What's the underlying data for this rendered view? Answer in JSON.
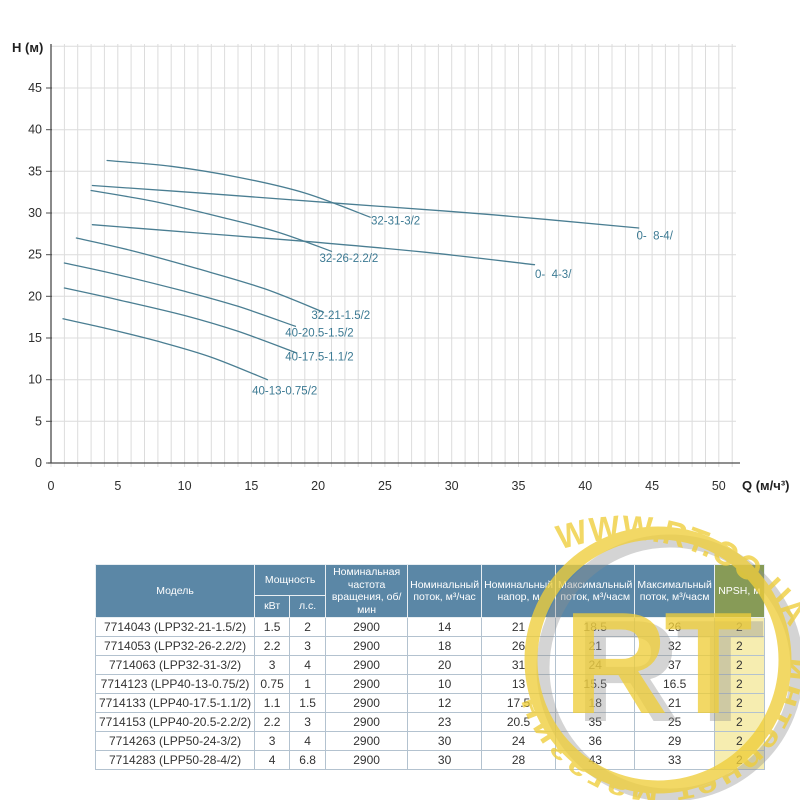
{
  "chart_data": {
    "type": "line",
    "title": "",
    "xlabel": "Q (м/ч³)",
    "ylabel": "H (м)",
    "xlim": [
      0,
      51.3
    ],
    "ylim": [
      0,
      50.3
    ],
    "x_ticks": [
      0,
      5,
      10,
      15,
      20,
      25,
      30,
      35,
      40,
      45,
      50
    ],
    "y_ticks": [
      0,
      5,
      10,
      15,
      20,
      25,
      30,
      35,
      40,
      45
    ],
    "grid": {
      "x_minor_step": 1,
      "y_step": 5,
      "on": true
    },
    "legend_position": "inline-labels",
    "series": [
      {
        "label": "40-13-0.75/2",
        "label_at": [
          17.5,
          8.2
        ],
        "points": [
          [
            0.9,
            17.3
          ],
          [
            4,
            16.2
          ],
          [
            8,
            14.6
          ],
          [
            12,
            12.7
          ],
          [
            16.2,
            10.0
          ]
        ]
      },
      {
        "label": "40-17.5-1.1/2",
        "label_at": [
          20.1,
          12.3
        ],
        "points": [
          [
            1.0,
            21.0
          ],
          [
            5,
            19.6
          ],
          [
            10,
            17.7
          ],
          [
            14,
            15.8
          ],
          [
            18.4,
            13.2
          ]
        ]
      },
      {
        "label": "40-20.5-1.5/2",
        "label_at": [
          20.1,
          15.2
        ],
        "points": [
          [
            1.0,
            24.0
          ],
          [
            5,
            22.6
          ],
          [
            10,
            20.6
          ],
          [
            14,
            18.8
          ],
          [
            18.3,
            16.4
          ]
        ]
      },
      {
        "label": "32-21-1.5/2",
        "label_at": [
          21.7,
          17.3
        ],
        "points": [
          [
            1.9,
            27.0
          ],
          [
            6,
            25.5
          ],
          [
            11,
            23.3
          ],
          [
            16,
            20.9
          ],
          [
            20.4,
            18.1
          ]
        ]
      },
      {
        "label": "32-26-2.2/2",
        "label_at": [
          22.3,
          24.1
        ],
        "points": [
          [
            3.0,
            32.7
          ],
          [
            8,
            31.3
          ],
          [
            13,
            29.4
          ],
          [
            17,
            27.7
          ],
          [
            21.0,
            25.4
          ]
        ]
      },
      {
        "label": "32-31-3/2",
        "label_at": [
          25.8,
          28.6
        ],
        "points": [
          [
            4.2,
            36.3
          ],
          [
            9,
            35.6
          ],
          [
            14,
            34.3
          ],
          [
            19,
            32.4
          ],
          [
            23.9,
            29.5
          ]
        ]
      },
      {
        "label": "0-  4-3/",
        "label_at": [
          37.6,
          22.2
        ],
        "points": [
          [
            3.1,
            28.6
          ],
          [
            11,
            27.6
          ],
          [
            19,
            26.6
          ],
          [
            28,
            25.3
          ],
          [
            36.2,
            23.8
          ]
        ]
      },
      {
        "label": "0-  8-4/",
        "label_at": [
          45.2,
          26.8
        ],
        "points": [
          [
            3.1,
            33.3
          ],
          [
            12,
            32.3
          ],
          [
            22,
            31.1
          ],
          [
            33,
            29.8
          ],
          [
            44.0,
            28.2
          ]
        ]
      }
    ]
  },
  "table": {
    "headers": {
      "model": "Модель",
      "power": "Мощность",
      "kw": "кВт",
      "hp": "л.с.",
      "rpm": "Номинальная частота вращения, об/мин",
      "nom_flow": "Номинальный поток, м³/час",
      "nom_head": "Номинальный напор, м",
      "max_a": "Максимальный поток, м³/часм",
      "max_b": "Максимальный поток, м³/часм",
      "npsh": "NPSH, м"
    },
    "rows": [
      [
        "7714043 (LPP32-21-1.5/2)",
        "1.5",
        "2",
        "2900",
        "14",
        "21",
        "18.5",
        "26",
        "2"
      ],
      [
        "7714053 (LPP32-26-2.2/2)",
        "2.2",
        "3",
        "2900",
        "18",
        "26",
        "21",
        "32",
        "2"
      ],
      [
        "7714063 (LPP32-31-3/2)",
        "3",
        "4",
        "2900",
        "20",
        "31",
        "24",
        "37",
        "2"
      ],
      [
        "7714123 (LPP40-13-0.75/2)",
        "0.75",
        "1",
        "2900",
        "10",
        "13",
        "15.5",
        "16.5",
        "2"
      ],
      [
        "7714133 (LPP40-17.5-1.1/2)",
        "1.1",
        "1.5",
        "2900",
        "12",
        "17.5",
        "18",
        "21",
        "2"
      ],
      [
        "7714153 (LPP40-20.5-2.2/2)",
        "2.2",
        "3",
        "2900",
        "23",
        "20.5",
        "35",
        "25",
        "2"
      ],
      [
        "7714263 (LPP50-24-3/2)",
        "3",
        "4",
        "2900",
        "30",
        "24",
        "36",
        "29",
        "2"
      ],
      [
        "7714283 (LPP50-28-4/2)",
        "4",
        "6.8",
        "2900",
        "30",
        "28",
        "43",
        "33",
        "2"
      ]
    ]
  },
  "watermark": {
    "site": "WWW.RT.CO.UA",
    "monogram": "RT",
    "ring_text": "интернет  магазин",
    "color": "#efce3a"
  }
}
